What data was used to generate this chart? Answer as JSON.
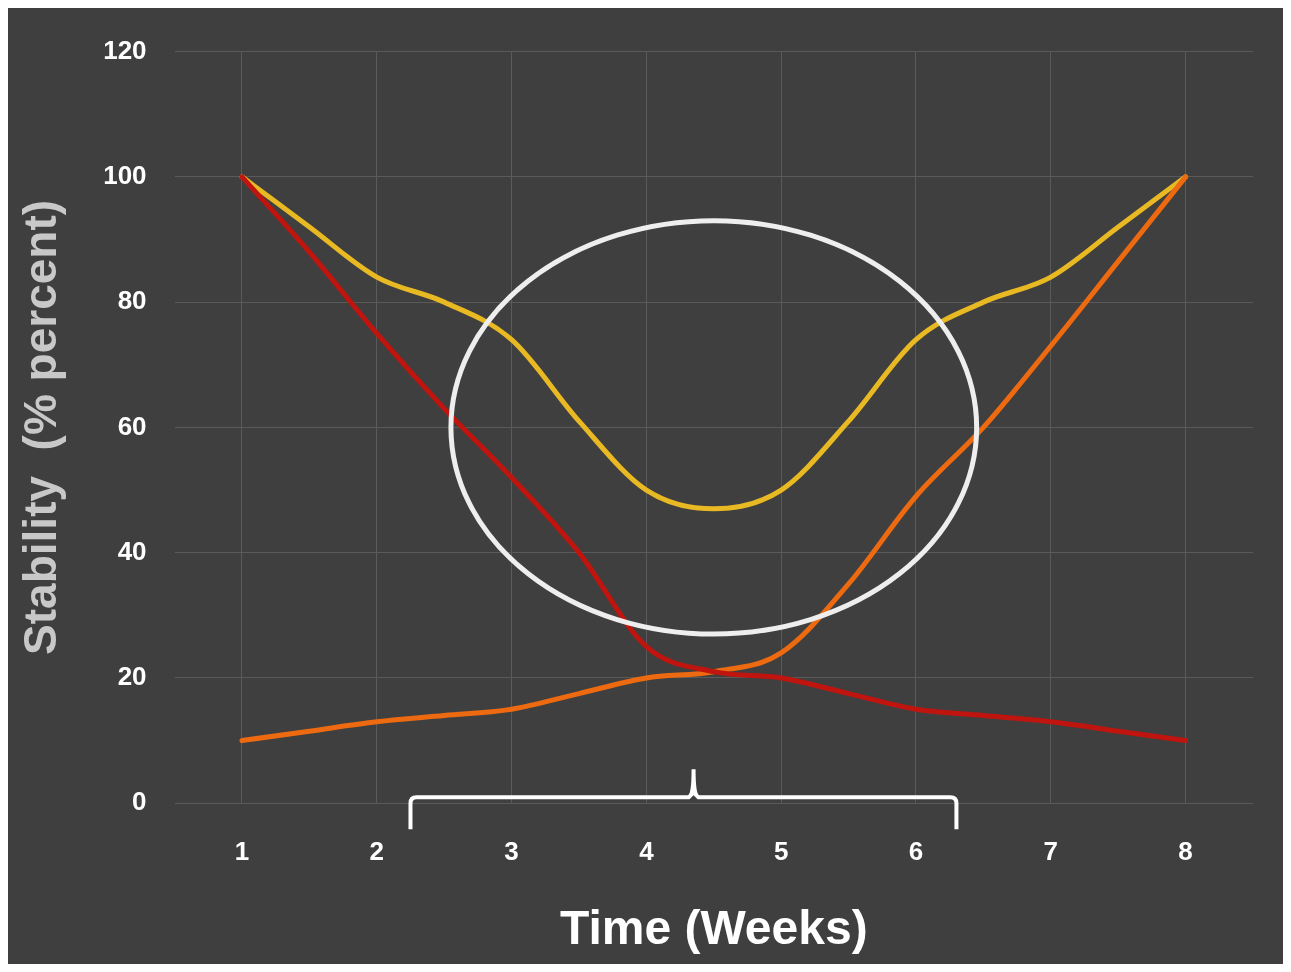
{
  "chart_data": {
    "type": "line",
    "xlabel": "Time (Weeks)",
    "ylabel": "Stability  (% percent)",
    "xlim": [
      0.5,
      8.5
    ],
    "xticks": [
      1,
      2,
      3,
      4,
      5,
      6,
      7,
      8
    ],
    "ylim": [
      0,
      120
    ],
    "yticks": [
      0,
      20,
      40,
      60,
      80,
      100,
      120
    ],
    "grid": true,
    "legend": false,
    "marker": "none",
    "line_style": "solid",
    "series": [
      {
        "color": "#c0140f",
        "x": [
          1,
          1.5,
          2,
          2.5,
          3,
          3.5,
          4,
          4.5,
          5,
          5.5,
          6,
          6.5,
          7,
          7.5,
          8
        ],
        "values": [
          100,
          88,
          75,
          63,
          52,
          40,
          25,
          21,
          20,
          17.5,
          15,
          14,
          13,
          11.5,
          10
        ]
      },
      {
        "color": "#ee6a10",
        "x": [
          1,
          1.5,
          2,
          2.5,
          3,
          3.5,
          4,
          4.5,
          5,
          5.5,
          6,
          6.5,
          7,
          7.5,
          8
        ],
        "values": [
          10,
          11.5,
          13,
          14,
          15,
          17.5,
          20,
          21,
          24,
          35,
          49,
          60,
          73,
          86.5,
          100
        ]
      },
      {
        "color": "#e8b923",
        "x": [
          1,
          1.5,
          2,
          2.5,
          3,
          3.5,
          4,
          4.5,
          5,
          5.5,
          6,
          6.5,
          7,
          7.5,
          8
        ],
        "values": [
          100,
          92,
          84,
          80,
          74,
          61,
          50,
          47,
          50,
          61,
          74,
          80,
          84,
          92,
          100
        ]
      }
    ]
  }
}
